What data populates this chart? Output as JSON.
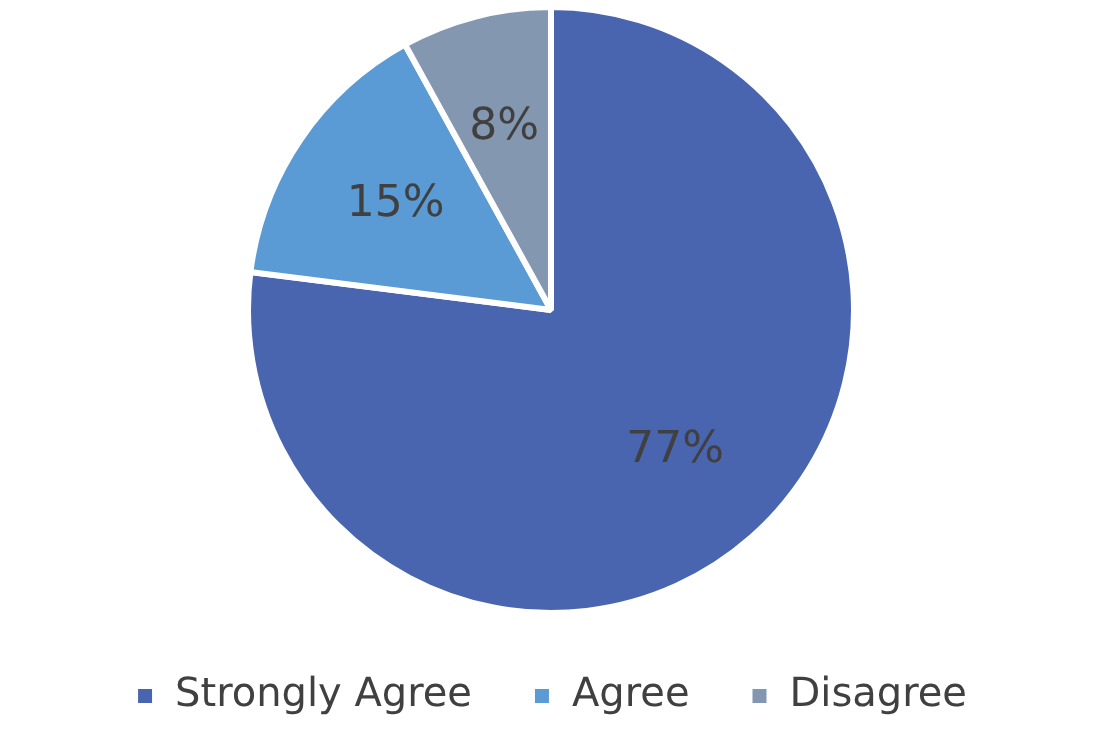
{
  "chart_data": {
    "type": "pie",
    "categories": [
      "Strongly Agree",
      "Agree",
      "Disagree"
    ],
    "values": [
      77,
      15,
      8
    ],
    "colors": [
      "#4a65af",
      "#5b9bd5",
      "#8497b0"
    ],
    "value_labels": [
      "77%",
      "15%",
      "8%"
    ],
    "legend": "bottom"
  }
}
